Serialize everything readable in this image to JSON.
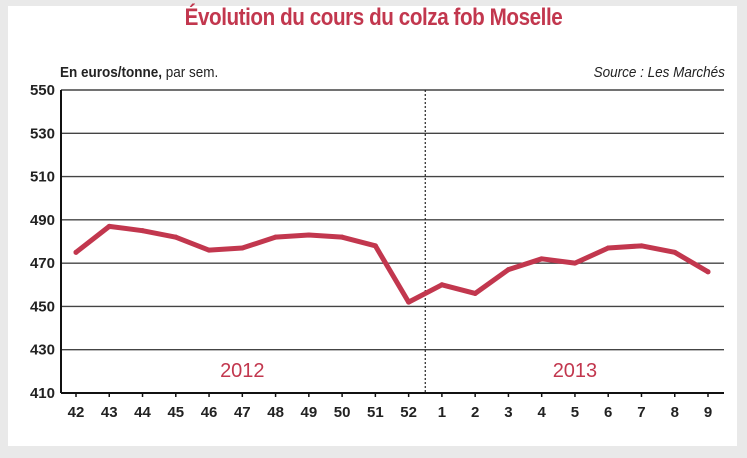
{
  "chart_data": {
    "type": "line",
    "title": "Évolution du cours du colza fob Moselle",
    "unit_label_bold": "En euros/tonne,",
    "unit_label_rest": " par sem.",
    "source": "Source : Les Marchés",
    "categories": [
      "42",
      "43",
      "44",
      "45",
      "46",
      "47",
      "48",
      "49",
      "50",
      "51",
      "52",
      "1",
      "2",
      "3",
      "4",
      "5",
      "6",
      "7",
      "8",
      "9"
    ],
    "series": [
      {
        "values": [
          475,
          487,
          485,
          482,
          476,
          477,
          482,
          483,
          482,
          478,
          452,
          460,
          456,
          467,
          472,
          470,
          477,
          478,
          475,
          466
        ]
      }
    ],
    "ylim": [
      410,
      550
    ],
    "yticks": [
      410,
      430,
      450,
      470,
      490,
      510,
      530,
      550
    ],
    "year_labels": [
      {
        "label": "2012",
        "from_index": 0,
        "to_index": 10
      },
      {
        "label": "2013",
        "from_index": 11,
        "to_index": 19
      }
    ],
    "year_divider_after_index": 10,
    "grid": true,
    "colors": {
      "line": "#c2374e",
      "title": "#c2374e",
      "grid": "#444444"
    }
  }
}
